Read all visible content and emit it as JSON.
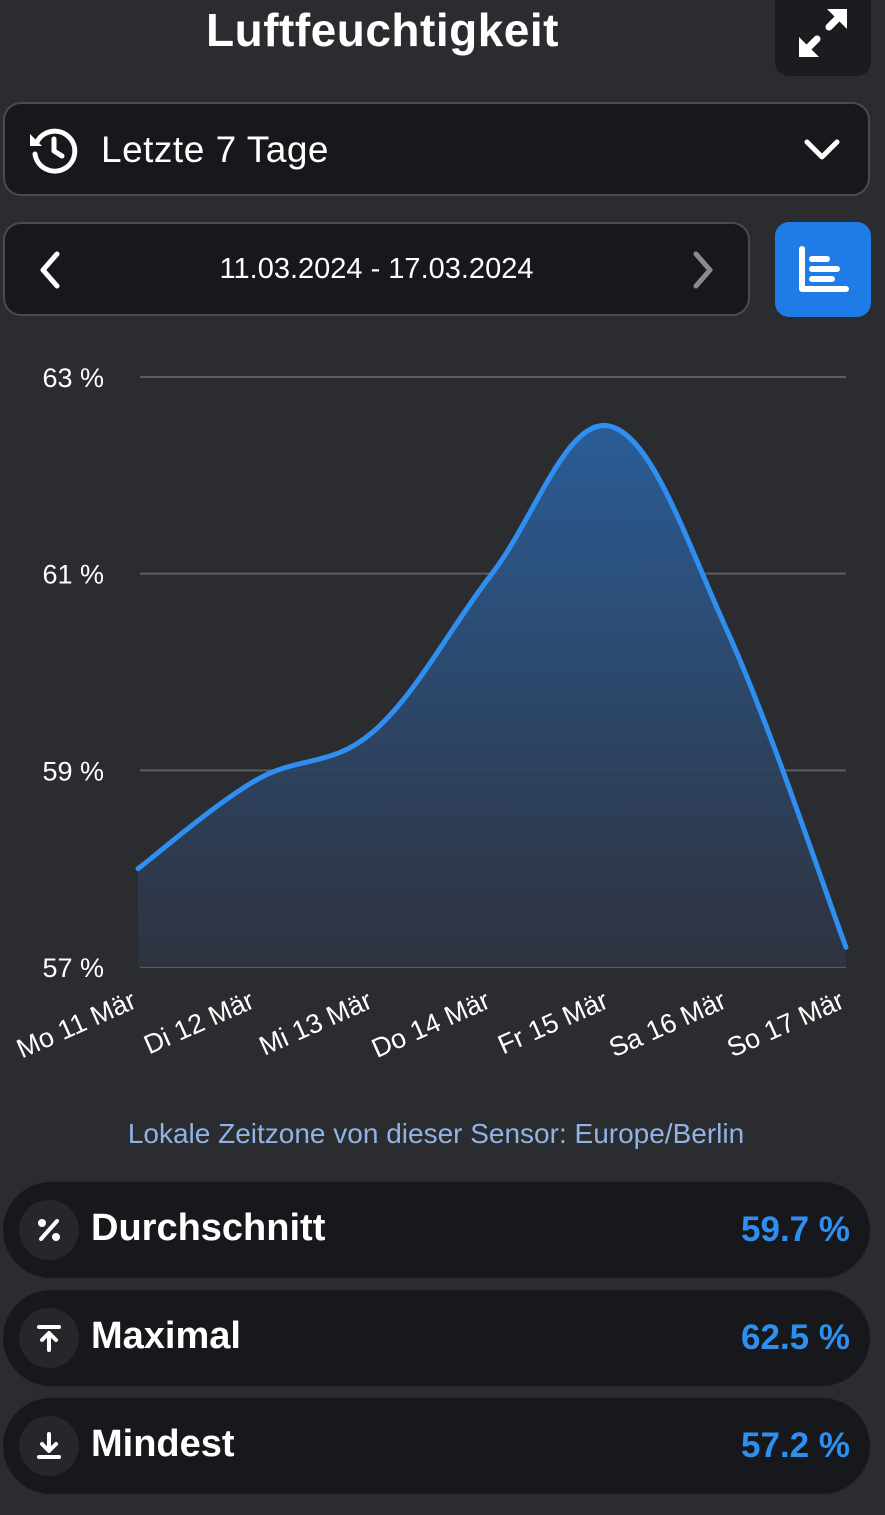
{
  "header": {
    "title": "Luftfeuchtigkeit",
    "expand_icon": "expand-arrows-icon"
  },
  "range_select": {
    "label": "Letzte 7 Tage",
    "icon": "history-icon",
    "dropdown_icon": "chevron-down-icon"
  },
  "date_nav": {
    "range": "11.03.2024 - 17.03.2024",
    "prev_icon": "chevron-left-icon",
    "next_icon": "chevron-right-icon"
  },
  "chart_toggle": {
    "icon": "chart-icon",
    "color": "#1f7be5"
  },
  "chart_data": {
    "type": "area",
    "categories": [
      "Mo 11 Mär",
      "Di 12 Mär",
      "Mi 13 Mär",
      "Do 14 Mär",
      "Fr 15 Mär",
      "Sa 16 Mär",
      "So 17 Mär"
    ],
    "values": [
      58.0,
      58.9,
      59.4,
      61.0,
      62.5,
      60.4,
      57.2
    ],
    "ylim": [
      57,
      63
    ],
    "yticks": [
      57,
      59,
      61,
      63
    ],
    "ytick_labels": [
      "57 %",
      "59 %",
      "61 %",
      "63 %"
    ],
    "grid": true,
    "line_color": "#2f8ff0"
  },
  "timezone_note": "Lokale Zeitzone von dieser Sensor: Europe/Berlin",
  "stats": [
    {
      "label": "Durchschnitt",
      "value": "59.7 %",
      "icon": "percent-icon"
    },
    {
      "label": "Maximal",
      "value": "62.5 %",
      "icon": "arrow-up-to-line-icon"
    },
    {
      "label": "Mindest",
      "value": "57.2 %",
      "icon": "arrow-down-to-line-icon"
    }
  ]
}
